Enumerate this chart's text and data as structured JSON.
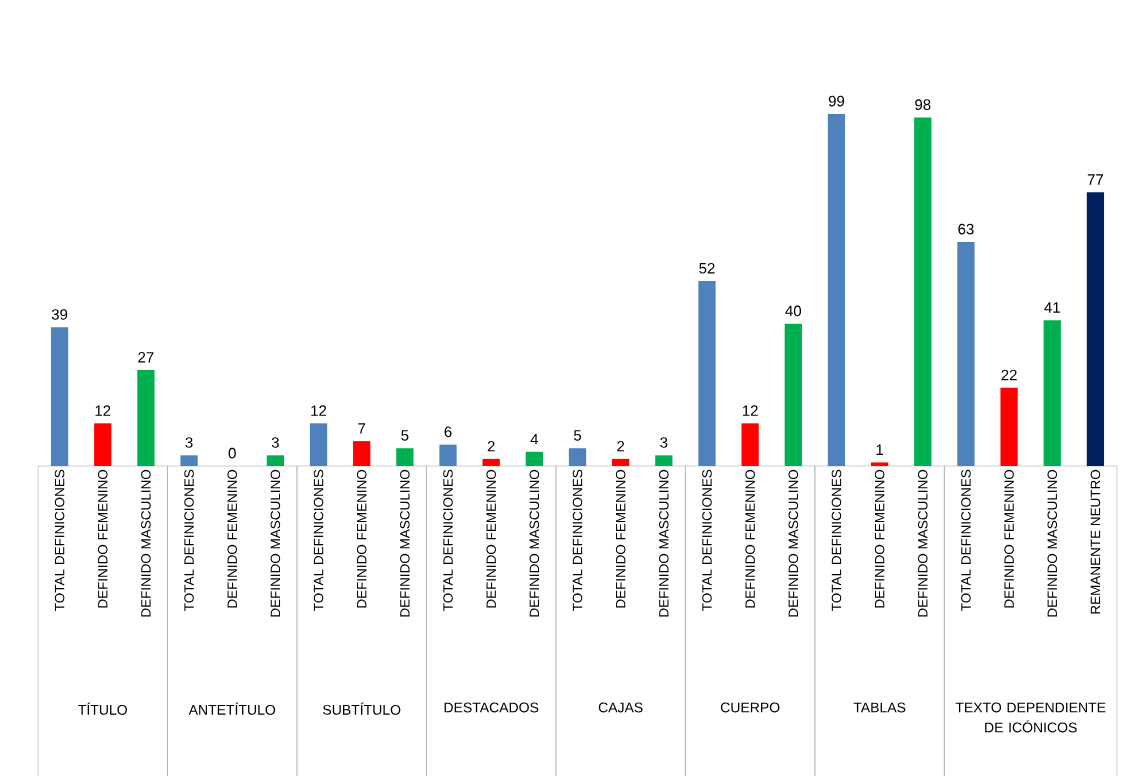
{
  "chart_data": {
    "type": "bar",
    "data_labels": true,
    "annotations": [
      "TÍTULO",
      "ANTETÍTULO",
      "SUBTÍTULO",
      "DESTACADOS",
      "CAJAS",
      "CUERPO",
      "TABLAS",
      "TEXTO DEPENDIENTE DE ICÓNICOS"
    ],
    "categories": [
      "TOTAL DEFINICIONES",
      "DEFINIDO FEMENINO",
      "DEFINIDO MASCULINO",
      "TOTAL DEFINICIONES",
      "DEFINIDO FEMENINO",
      "DEFINIDO MASCULINO",
      "TOTAL DEFINICIONES",
      "DEFINIDO FEMENINO",
      "DEFINIDO MASCULINO",
      "TOTAL DEFINICIONES",
      "DEFINIDO FEMENINO",
      "DEFINIDO MASCULINO",
      "TOTAL DEFINICIONES",
      "DEFINIDO FEMENINO",
      "DEFINIDO MASCULINO",
      "TOTAL DEFINICIONES",
      "DEFINIDO FEMENINO",
      "DEFINIDO MASCULINO",
      "TOTAL DEFINICIONES",
      "DEFINIDO FEMENINO",
      "DEFINIDO MASCULINO",
      "TOTAL DEFINICIONES",
      "DEFINIDO FEMENINO",
      "DEFINIDO MASCULINO",
      "REMANENTE NEUTRO"
    ],
    "series": [
      {
        "values": [
          39,
          12,
          27,
          null,
          null,
          null,
          null,
          null,
          null,
          null,
          null,
          null,
          null,
          null,
          null,
          null,
          null,
          null,
          null,
          null,
          null,
          null,
          null,
          null,
          null
        ],
        "colors": [
          "#4f81bd",
          "#ff0000",
          "#00b050",
          null,
          null,
          null,
          null,
          null,
          null,
          null,
          null,
          null,
          null,
          null,
          null,
          null,
          null,
          null,
          null,
          null,
          null,
          null,
          null,
          null,
          null
        ]
      },
      {
        "values": [
          null,
          null,
          null,
          3,
          0,
          3,
          null,
          null,
          null,
          null,
          null,
          null,
          null,
          null,
          null,
          null,
          null,
          null,
          null,
          null,
          null,
          null,
          null,
          null,
          null
        ],
        "colors": [
          null,
          null,
          null,
          "#4f81bd",
          "#ff0000",
          "#00b050",
          null,
          null,
          null,
          null,
          null,
          null,
          null,
          null,
          null,
          null,
          null,
          null,
          null,
          null,
          null,
          null,
          null,
          null,
          null
        ]
      },
      {
        "values": [
          null,
          null,
          null,
          null,
          null,
          null,
          12,
          7,
          5,
          null,
          null,
          null,
          null,
          null,
          null,
          null,
          null,
          null,
          null,
          null,
          null,
          null,
          null,
          null,
          null
        ],
        "colors": [
          null,
          null,
          null,
          null,
          null,
          null,
          "#4f81bd",
          "#ff0000",
          "#00b050",
          null,
          null,
          null,
          null,
          null,
          null,
          null,
          null,
          null,
          null,
          null,
          null,
          null,
          null,
          null,
          null
        ]
      },
      {
        "values": [
          null,
          null,
          null,
          null,
          null,
          null,
          null,
          null,
          null,
          6,
          2,
          4,
          null,
          null,
          null,
          null,
          null,
          null,
          null,
          null,
          null,
          null,
          null,
          null,
          null
        ],
        "colors": [
          null,
          null,
          null,
          null,
          null,
          null,
          null,
          null,
          null,
          "#4f81bd",
          "#ff0000",
          "#00b050",
          null,
          null,
          null,
          null,
          null,
          null,
          null,
          null,
          null,
          null,
          null,
          null,
          null
        ]
      },
      {
        "values": [
          null,
          null,
          null,
          null,
          null,
          null,
          null,
          null,
          null,
          null,
          null,
          null,
          5,
          2,
          3,
          null,
          null,
          null,
          null,
          null,
          null,
          null,
          null,
          null,
          null
        ],
        "colors": [
          null,
          null,
          null,
          null,
          null,
          null,
          null,
          null,
          null,
          null,
          null,
          null,
          "#4f81bd",
          "#ff0000",
          "#00b050",
          null,
          null,
          null,
          null,
          null,
          null,
          null,
          null,
          null,
          null
        ]
      },
      {
        "values": [
          null,
          null,
          null,
          null,
          null,
          null,
          null,
          null,
          null,
          null,
          null,
          null,
          null,
          null,
          null,
          52,
          12,
          40,
          null,
          null,
          null,
          null,
          null,
          null,
          null
        ],
        "colors": [
          null,
          null,
          null,
          null,
          null,
          null,
          null,
          null,
          null,
          null,
          null,
          null,
          null,
          null,
          null,
          "#4f81bd",
          "#ff0000",
          "#00b050",
          null,
          null,
          null,
          null,
          null,
          null,
          null
        ]
      },
      {
        "values": [
          null,
          null,
          null,
          null,
          null,
          null,
          null,
          null,
          null,
          null,
          null,
          null,
          null,
          null,
          null,
          null,
          null,
          null,
          99,
          1,
          98,
          null,
          null,
          null,
          null
        ],
        "colors": [
          null,
          null,
          null,
          null,
          null,
          null,
          null,
          null,
          null,
          null,
          null,
          null,
          null,
          null,
          null,
          null,
          null,
          null,
          "#4f81bd",
          "#ff0000",
          "#00b050",
          null,
          null,
          null,
          null
        ]
      },
      {
        "values": [
          null,
          null,
          null,
          null,
          null,
          null,
          null,
          null,
          null,
          null,
          null,
          null,
          null,
          null,
          null,
          null,
          null,
          null,
          null,
          null,
          null,
          63,
          22,
          41,
          77
        ],
        "colors": [
          null,
          null,
          null,
          null,
          null,
          null,
          null,
          null,
          null,
          null,
          null,
          null,
          null,
          null,
          null,
          null,
          null,
          null,
          null,
          null,
          null,
          "#4f81bd",
          "#ff0000",
          "#00b050",
          "#002060"
        ]
      }
    ]
  }
}
